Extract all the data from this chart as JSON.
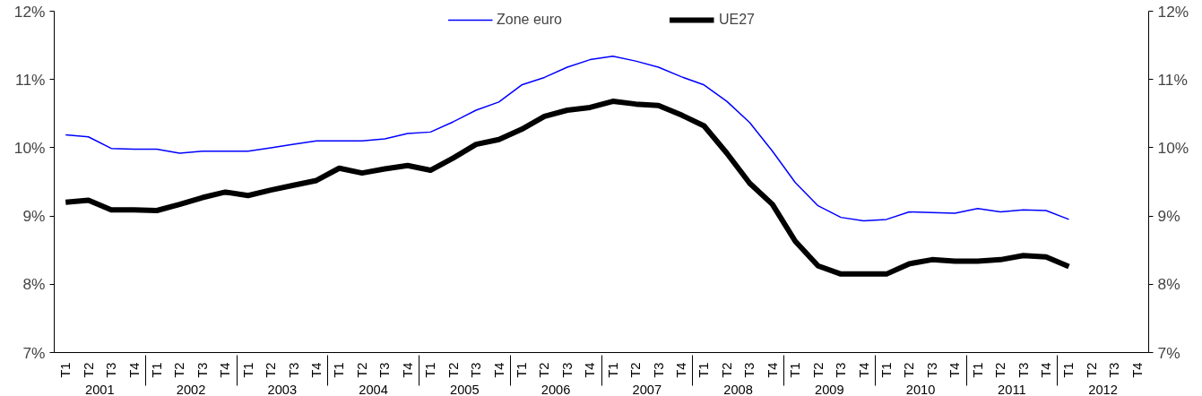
{
  "chart_data": {
    "type": "line",
    "categories": [
      "T1",
      "T2",
      "T3",
      "T4",
      "T1",
      "T2",
      "T3",
      "T4",
      "T1",
      "T2",
      "T3",
      "T4",
      "T1",
      "T2",
      "T3",
      "T4",
      "T1",
      "T2",
      "T3",
      "T4",
      "T1",
      "T2",
      "T3",
      "T4",
      "T1",
      "T2",
      "T3",
      "T4",
      "T1",
      "T2",
      "T3",
      "T4",
      "T1",
      "T2",
      "T3",
      "T4",
      "T1",
      "T2",
      "T3",
      "T4",
      "T1",
      "T2",
      "T3",
      "T4",
      "T1",
      "T2",
      "T3",
      "T4"
    ],
    "annotations": [
      "2001",
      "2002",
      "2003",
      "2004",
      "2005",
      "2006",
      "2007",
      "2008",
      "2009",
      "2010",
      "2011",
      "2012"
    ],
    "series": [
      {
        "name": "Zone euro",
        "color": "#0000ff",
        "values": [
          10.19,
          10.16,
          9.99,
          9.98,
          9.98,
          9.92,
          9.95,
          9.95,
          9.95,
          10.0,
          10.05,
          10.1,
          10.1,
          10.1,
          10.13,
          10.21,
          10.23,
          10.38,
          10.55,
          10.67,
          10.92,
          11.03,
          11.18,
          11.29,
          11.34,
          11.27,
          11.18,
          11.04,
          10.92,
          10.68,
          10.37,
          9.95,
          9.49,
          9.15,
          8.98,
          8.93,
          8.95,
          9.06,
          9.05,
          9.04,
          9.11,
          9.06,
          9.09,
          9.08,
          8.95,
          null,
          null,
          null
        ]
      },
      {
        "name": "UE27",
        "color": "#000000",
        "values": [
          9.2,
          9.23,
          9.09,
          9.09,
          9.08,
          9.17,
          9.27,
          9.35,
          9.3,
          9.38,
          9.45,
          9.52,
          9.7,
          9.63,
          9.69,
          9.74,
          9.67,
          9.85,
          10.05,
          10.12,
          10.27,
          10.46,
          10.55,
          10.59,
          10.68,
          10.64,
          10.62,
          10.48,
          10.32,
          9.92,
          9.48,
          9.17,
          8.63,
          8.27,
          8.15,
          8.15,
          8.15,
          8.3,
          8.36,
          8.34,
          8.34,
          8.36,
          8.42,
          8.4,
          8.26,
          null,
          null,
          null
        ]
      }
    ],
    "ylim": [
      7,
      12
    ],
    "yticks": [
      {
        "value": 7,
        "label": "7%"
      },
      {
        "value": 8,
        "label": "8%"
      },
      {
        "value": 9,
        "label": "9%"
      },
      {
        "value": 10,
        "label": "10%"
      },
      {
        "value": 11,
        "label": "11%"
      },
      {
        "value": 12,
        "label": "12%"
      }
    ],
    "y2lim": [
      7,
      12
    ],
    "y2ticks": [
      {
        "value": 7,
        "label": "7%"
      },
      {
        "value": 8,
        "label": "8%"
      },
      {
        "value": 9,
        "label": "9%"
      },
      {
        "value": 10,
        "label": "10%"
      },
      {
        "value": 11,
        "label": "11%"
      },
      {
        "value": 12,
        "label": "12%"
      }
    ],
    "grid": false,
    "legend": "top",
    "marker": "none",
    "line_style": "solid"
  }
}
